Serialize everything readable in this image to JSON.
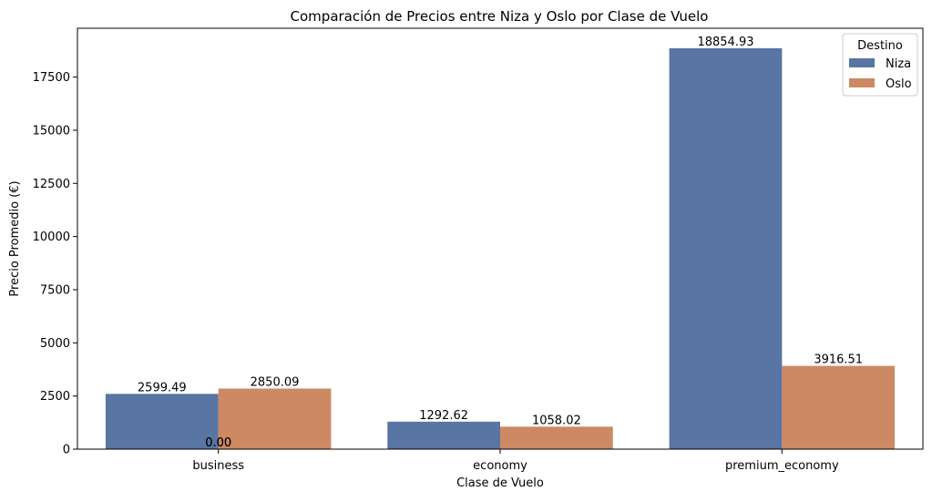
{
  "chart_data": {
    "type": "bar",
    "title": "Comparación de Precios entre Niza y Oslo por Clase de Vuelo",
    "xlabel": "Clase de Vuelo",
    "ylabel": "Precio Promedio (€)",
    "categories": [
      "business",
      "economy",
      "premium_economy"
    ],
    "series": [
      {
        "name": "Niza",
        "color": "#5875a4",
        "values": [
          2599.49,
          1292.62,
          18854.93
        ],
        "labels": [
          "2599.49",
          "1292.62",
          "18854.93"
        ]
      },
      {
        "name": "Oslo",
        "color": "#cc8963",
        "values": [
          2850.09,
          1058.02,
          3916.51
        ],
        "labels": [
          "2850.09",
          "1058.02",
          "3916.51"
        ]
      }
    ],
    "extra_labels": [
      {
        "text": "0.00"
      },
      {
        "text": "0.00"
      }
    ],
    "yticks": [
      0,
      2500,
      5000,
      7500,
      10000,
      12500,
      15000,
      17500
    ],
    "ylim": [
      0,
      19797.18
    ],
    "legend": {
      "title": "Destino",
      "position": "top-right"
    },
    "grid": false
  }
}
